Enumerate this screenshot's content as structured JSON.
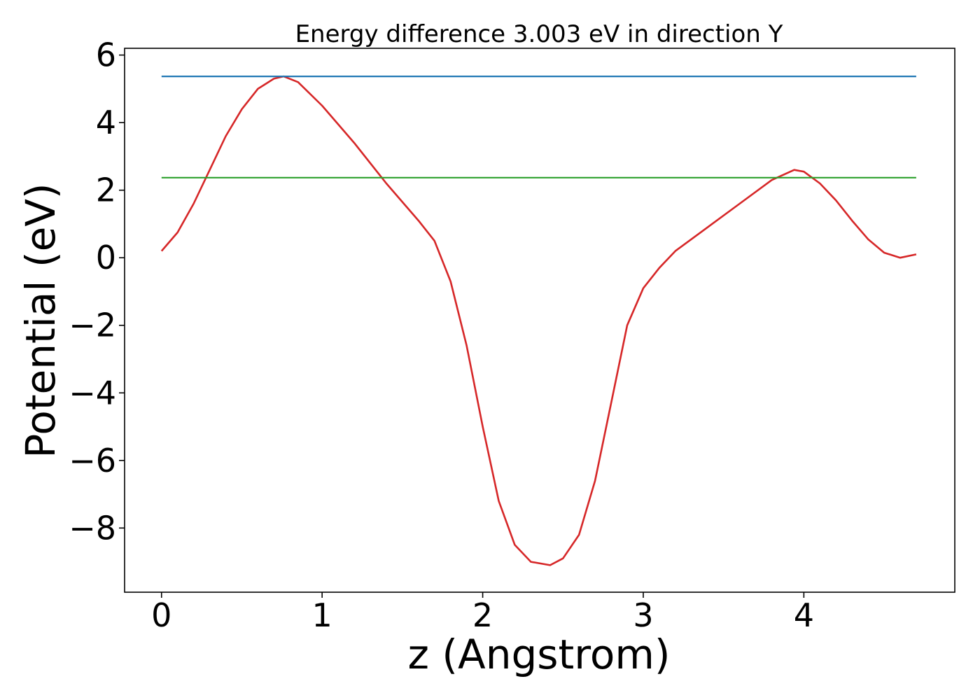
{
  "chart_data": {
    "type": "line",
    "title": "Energy difference 3.003 eV in direction Y",
    "xlabel": "z (Angstrom)",
    "ylabel": "Potential (eV)",
    "xlim": [
      -0.23,
      4.94
    ],
    "ylim": [
      -9.9,
      6.2
    ],
    "xticks": [
      0,
      1,
      2,
      3,
      4
    ],
    "xtick_labels": [
      "0",
      "1",
      "2",
      "3",
      "4"
    ],
    "yticks": [
      -8,
      -6,
      -4,
      -2,
      0,
      2,
      4,
      6
    ],
    "ytick_labels": [
      "−8",
      "−6",
      "−4",
      "−2",
      "0",
      "2",
      "4",
      "6"
    ],
    "grid": false,
    "legend": false,
    "series": [
      {
        "color": "#d62728",
        "style": "solid",
        "x": [
          0.0,
          0.1,
          0.2,
          0.3,
          0.4,
          0.5,
          0.6,
          0.7,
          0.76,
          0.85,
          1.0,
          1.2,
          1.4,
          1.6,
          1.7,
          1.8,
          1.9,
          2.0,
          2.1,
          2.2,
          2.3,
          2.42,
          2.5,
          2.6,
          2.7,
          2.8,
          2.9,
          3.0,
          3.1,
          3.2,
          3.4,
          3.6,
          3.8,
          3.94,
          4.0,
          4.1,
          4.2,
          4.3,
          4.4,
          4.5,
          4.6,
          4.7
        ],
        "y": [
          0.2,
          0.75,
          1.6,
          2.6,
          3.6,
          4.4,
          5.0,
          5.3,
          5.37,
          5.2,
          4.5,
          3.4,
          2.2,
          1.1,
          0.5,
          -0.7,
          -2.6,
          -5.0,
          -7.2,
          -8.5,
          -9.0,
          -9.1,
          -8.9,
          -8.2,
          -6.6,
          -4.3,
          -2.0,
          -0.9,
          -0.3,
          0.2,
          0.9,
          1.6,
          2.3,
          2.6,
          2.55,
          2.2,
          1.7,
          1.1,
          0.55,
          0.15,
          0.0,
          0.1
        ]
      },
      {
        "color": "#1f77b4",
        "style": "solid",
        "x": [
          0.0,
          4.7
        ],
        "y": [
          5.37,
          5.37
        ]
      },
      {
        "color": "#2ca02c",
        "style": "solid",
        "x": [
          0.0,
          4.7
        ],
        "y": [
          2.37,
          2.37
        ]
      }
    ]
  }
}
